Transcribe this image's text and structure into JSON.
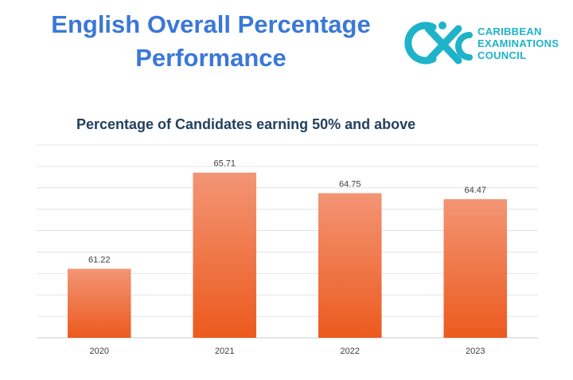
{
  "slide": {
    "title_line1": "English Overall Percentage",
    "title_line2": "Performance"
  },
  "logo": {
    "line1": "CARIBBEAN",
    "line2": "EXAMINATIONS",
    "line3": "COUNCIL",
    "icon": "cxc-emblem-icon",
    "color": "#1eb3c9"
  },
  "colors": {
    "title": "#3a78d8",
    "bar_top": "#f39575",
    "bar_bottom": "#ec5a1e",
    "grid": "#dfe4ea"
  },
  "chart_data": {
    "type": "bar",
    "title": "Percentage of Candidates earning 50% and above",
    "categories": [
      "2020",
      "2021",
      "2022",
      "2023"
    ],
    "values": [
      61.22,
      65.71,
      64.75,
      64.47
    ],
    "data_labels": [
      "61.22",
      "65.71",
      "64.75",
      "64.47"
    ],
    "ylim": [
      58,
      67
    ],
    "grid": true,
    "y_tick_labels_shown": false
  }
}
